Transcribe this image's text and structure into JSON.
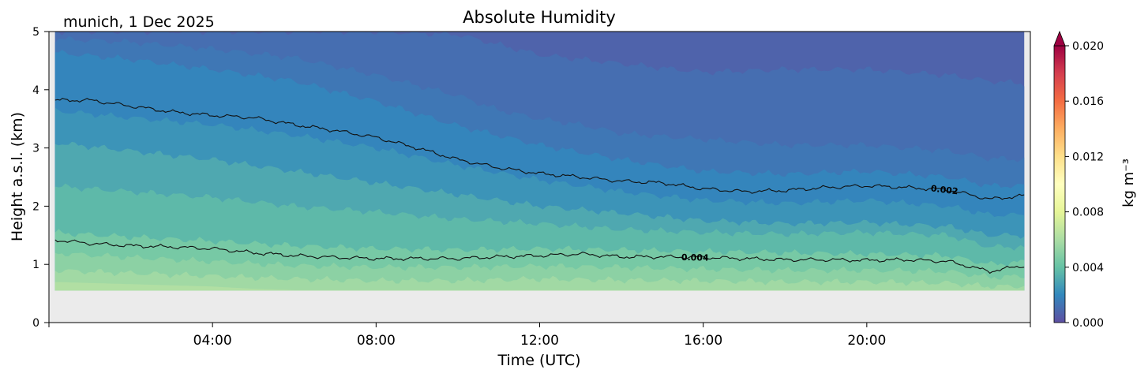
{
  "chart_data": {
    "type": "contour",
    "title": "Absolute Humidity",
    "annotation": "munich, 1 Dec 2025",
    "xlabel": "Time (UTC)",
    "ylabel": "Height a.s.l. (km)",
    "xlim": [
      0,
      24
    ],
    "ylim": [
      0,
      5
    ],
    "x_ticks": [
      4,
      8,
      12,
      16,
      20
    ],
    "x_tick_labels": [
      "04:00",
      "08:00",
      "12:00",
      "16:00",
      "20:00"
    ],
    "y_ticks": [
      0,
      1,
      2,
      3,
      4,
      5
    ],
    "y_tick_labels": [
      "0",
      "1",
      "2",
      "3",
      "4",
      "5"
    ],
    "data_range": {
      "time_start": 0.15,
      "time_end": 23.85,
      "height_min": 0.55,
      "height_max": 5.0
    },
    "colorbar": {
      "label": "kg m⁻³",
      "range": [
        0.0,
        0.02
      ],
      "ticks": [
        0.0,
        0.004,
        0.008,
        0.012,
        0.016,
        0.02
      ],
      "tick_labels": [
        "0.000",
        "0.004",
        "0.008",
        "0.012",
        "0.016",
        "0.020"
      ],
      "levels": 20,
      "extend": "max",
      "cmap": "Spectral_r"
    },
    "missing_color": "#ebebeb",
    "contour_lines": [
      {
        "level": 0.002,
        "label": "0.002",
        "label_time": 21.9,
        "points": [
          [
            0.15,
            3.82
          ],
          [
            1,
            3.82
          ],
          [
            2,
            3.72
          ],
          [
            3,
            3.62
          ],
          [
            4,
            3.56
          ],
          [
            5,
            3.52
          ],
          [
            6,
            3.4
          ],
          [
            7,
            3.3
          ],
          [
            8,
            3.18
          ],
          [
            9,
            3.0
          ],
          [
            10,
            2.8
          ],
          [
            11,
            2.66
          ],
          [
            12,
            2.56
          ],
          [
            13,
            2.5
          ],
          [
            14,
            2.43
          ],
          [
            15,
            2.4
          ],
          [
            16,
            2.3
          ],
          [
            17,
            2.25
          ],
          [
            18,
            2.27
          ],
          [
            19,
            2.32
          ],
          [
            20,
            2.35
          ],
          [
            21,
            2.32
          ],
          [
            22,
            2.28
          ],
          [
            23,
            2.12
          ],
          [
            23.85,
            2.18
          ]
        ]
      },
      {
        "level": 0.004,
        "label": "0.004",
        "label_time": 15.8,
        "points": [
          [
            0.15,
            1.42
          ],
          [
            1,
            1.36
          ],
          [
            2,
            1.32
          ],
          [
            3,
            1.3
          ],
          [
            4,
            1.27
          ],
          [
            5,
            1.2
          ],
          [
            6,
            1.15
          ],
          [
            7,
            1.12
          ],
          [
            8,
            1.1
          ],
          [
            9,
            1.1
          ],
          [
            10,
            1.1
          ],
          [
            11,
            1.13
          ],
          [
            12,
            1.15
          ],
          [
            13,
            1.18
          ],
          [
            14,
            1.13
          ],
          [
            15,
            1.13
          ],
          [
            16,
            1.12
          ],
          [
            17,
            1.1
          ],
          [
            18,
            1.08
          ],
          [
            19,
            1.08
          ],
          [
            20,
            1.07
          ],
          [
            21,
            1.08
          ],
          [
            22,
            1.05
          ],
          [
            23,
            0.88
          ],
          [
            23.85,
            0.98
          ]
        ]
      }
    ],
    "field_bands": [
      {
        "value": 0.0007,
        "profile": [
          [
            0,
            5
          ],
          [
            24,
            5
          ]
        ]
      },
      {
        "value": 0.0011,
        "profile": [
          [
            0,
            5.0
          ],
          [
            2,
            5.0
          ],
          [
            4,
            5.0
          ],
          [
            6,
            5.0
          ],
          [
            8,
            5.0
          ],
          [
            10,
            4.95
          ],
          [
            12,
            4.6
          ],
          [
            14,
            4.45
          ],
          [
            16,
            4.3
          ],
          [
            18,
            4.35
          ],
          [
            20,
            4.35
          ],
          [
            22,
            4.25
          ],
          [
            23,
            4.15
          ],
          [
            24,
            4.1
          ]
        ]
      },
      {
        "value": 0.0014,
        "profile": [
          [
            0,
            4.88
          ],
          [
            2,
            4.82
          ],
          [
            4,
            4.7
          ],
          [
            6,
            4.55
          ],
          [
            8,
            4.25
          ],
          [
            10,
            3.9
          ],
          [
            11,
            3.65
          ],
          [
            12,
            3.5
          ],
          [
            13,
            3.4
          ],
          [
            14,
            3.25
          ],
          [
            16,
            3.15
          ],
          [
            18,
            3.05
          ],
          [
            20,
            3.05
          ],
          [
            22,
            2.95
          ],
          [
            23,
            2.82
          ],
          [
            24,
            2.8
          ]
        ]
      },
      {
        "value": 0.0019,
        "profile": [
          [
            0,
            4.65
          ],
          [
            2,
            4.52
          ],
          [
            4,
            4.35
          ],
          [
            6,
            4.15
          ],
          [
            8,
            3.8
          ],
          [
            10,
            3.38
          ],
          [
            12,
            3.05
          ],
          [
            14,
            2.8
          ],
          [
            16,
            2.6
          ],
          [
            18,
            2.55
          ],
          [
            20,
            2.6
          ],
          [
            22,
            2.5
          ],
          [
            23,
            2.35
          ],
          [
            24,
            2.35
          ]
        ]
      },
      {
        "value": 0.0024,
        "profile": [
          [
            0,
            3.65
          ],
          [
            2,
            3.52
          ],
          [
            4,
            3.4
          ],
          [
            6,
            3.22
          ],
          [
            8,
            3.0
          ],
          [
            10,
            2.7
          ],
          [
            12,
            2.45
          ],
          [
            14,
            2.25
          ],
          [
            16,
            2.1
          ],
          [
            18,
            2.05
          ],
          [
            20,
            2.1
          ],
          [
            22,
            2.0
          ],
          [
            23,
            1.85
          ],
          [
            24,
            1.85
          ]
        ]
      },
      {
        "value": 0.0031,
        "profile": [
          [
            0,
            3.1
          ],
          [
            2,
            2.95
          ],
          [
            4,
            2.8
          ],
          [
            6,
            2.6
          ],
          [
            8,
            2.4
          ],
          [
            10,
            2.2
          ],
          [
            12,
            2.0
          ],
          [
            14,
            1.88
          ],
          [
            16,
            1.75
          ],
          [
            18,
            1.7
          ],
          [
            20,
            1.72
          ],
          [
            22,
            1.65
          ],
          [
            23,
            1.5
          ],
          [
            24,
            1.5
          ]
        ]
      },
      {
        "value": 0.0037,
        "profile": [
          [
            0,
            2.35
          ],
          [
            2,
            2.25
          ],
          [
            4,
            2.15
          ],
          [
            6,
            2.0
          ],
          [
            8,
            1.9
          ],
          [
            10,
            1.78
          ],
          [
            12,
            1.7
          ],
          [
            14,
            1.6
          ],
          [
            16,
            1.55
          ],
          [
            18,
            1.52
          ],
          [
            20,
            1.55
          ],
          [
            22,
            1.5
          ],
          [
            23,
            1.3
          ],
          [
            24,
            1.3
          ]
        ]
      },
      {
        "value": 0.0045,
        "profile": [
          [
            0,
            1.55
          ],
          [
            2,
            1.47
          ],
          [
            4,
            1.4
          ],
          [
            6,
            1.32
          ],
          [
            8,
            1.27
          ],
          [
            10,
            1.25
          ],
          [
            12,
            1.27
          ],
          [
            14,
            1.25
          ],
          [
            16,
            1.22
          ],
          [
            18,
            1.2
          ],
          [
            20,
            1.18
          ],
          [
            22,
            1.15
          ],
          [
            23,
            1.0
          ],
          [
            24,
            1.05
          ]
        ]
      },
      {
        "value": 0.0051,
        "profile": [
          [
            0,
            1.2
          ],
          [
            2,
            1.12
          ],
          [
            4,
            1.05
          ],
          [
            6,
            0.98
          ],
          [
            8,
            0.95
          ],
          [
            10,
            0.95
          ],
          [
            12,
            0.97
          ],
          [
            14,
            0.95
          ],
          [
            16,
            0.92
          ],
          [
            18,
            0.9
          ],
          [
            20,
            0.9
          ],
          [
            22,
            0.88
          ],
          [
            23,
            0.78
          ],
          [
            24,
            0.8
          ]
        ]
      },
      {
        "value": 0.0057,
        "profile": [
          [
            0,
            0.9
          ],
          [
            2,
            0.85
          ],
          [
            4,
            0.8
          ],
          [
            6,
            0.75
          ],
          [
            8,
            0.72
          ],
          [
            10,
            0.72
          ],
          [
            12,
            0.75
          ],
          [
            14,
            0.73
          ],
          [
            16,
            0.72
          ],
          [
            18,
            0.7
          ],
          [
            20,
            0.7
          ],
          [
            22,
            0.68
          ],
          [
            23,
            0.62
          ],
          [
            24,
            0.63
          ]
        ]
      },
      {
        "value": 0.0062,
        "profile": [
          [
            0,
            0.7
          ],
          [
            2,
            0.66
          ],
          [
            4,
            0.62
          ],
          [
            5,
            0.58
          ],
          [
            6,
            0.56
          ],
          [
            24,
            0.56
          ]
        ]
      }
    ]
  }
}
